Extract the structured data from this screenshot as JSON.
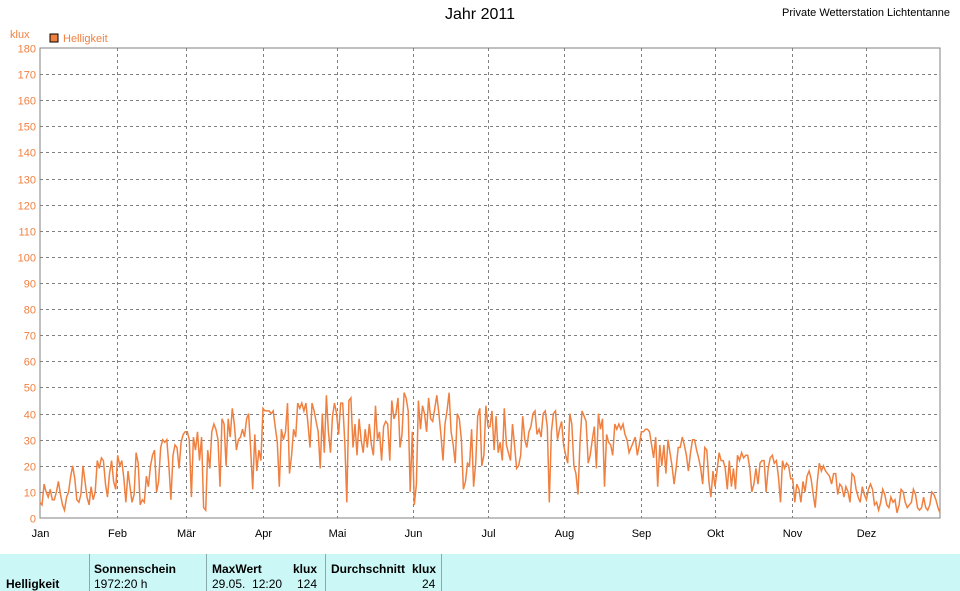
{
  "header": {
    "title": "Jahr 2011",
    "station": "Private Wetterstation Lichtentanne"
  },
  "chart_data": {
    "type": "line",
    "ylabel": "klux",
    "ylim": [
      0,
      180
    ],
    "yticks": [
      0,
      10,
      20,
      30,
      40,
      50,
      60,
      70,
      80,
      90,
      100,
      110,
      120,
      130,
      140,
      150,
      160,
      170,
      180
    ],
    "xlim": [
      1,
      365
    ],
    "month_ticks": [
      {
        "label": "Jan",
        "day": 1
      },
      {
        "label": "Feb",
        "day": 32
      },
      {
        "label": "Mär",
        "day": 60
      },
      {
        "label": "Apr",
        "day": 91
      },
      {
        "label": "Mai",
        "day": 121
      },
      {
        "label": "Jun",
        "day": 152
      },
      {
        "label": "Jul",
        "day": 182
      },
      {
        "label": "Aug",
        "day": 213
      },
      {
        "label": "Sep",
        "day": 244
      },
      {
        "label": "Okt",
        "day": 274
      },
      {
        "label": "Nov",
        "day": 305
      },
      {
        "label": "Dez",
        "day": 335
      }
    ],
    "grid": true,
    "legend_position": "top-left",
    "series": [
      {
        "name": "Helligkeit",
        "color": "#f08040",
        "values": [
          6,
          5,
          13,
          10,
          8,
          11,
          7,
          7,
          10,
          14,
          9,
          5,
          3,
          8,
          10,
          16,
          20,
          15,
          7,
          6,
          9,
          20,
          14,
          8,
          5,
          12,
          7,
          10,
          22,
          19,
          23,
          22,
          13,
          8,
          17,
          22,
          14,
          11,
          24,
          20,
          22,
          15,
          6,
          18,
          12,
          6,
          9,
          25,
          21,
          5,
          7,
          6,
          16,
          12,
          20,
          24,
          26,
          10,
          14,
          27,
          30,
          29,
          30,
          20,
          7,
          24,
          28,
          27,
          19,
          29,
          32,
          33,
          33,
          30,
          8,
          31,
          26,
          33,
          22,
          31,
          4,
          3,
          26,
          19,
          33,
          36,
          34,
          30,
          12,
          38,
          36,
          20,
          38,
          31,
          42,
          36,
          26,
          30,
          31,
          34,
          31,
          38,
          40,
          26,
          11,
          32,
          18,
          26,
          22,
          42,
          41,
          41,
          41,
          40,
          41,
          35,
          29,
          12,
          34,
          30,
          33,
          44,
          17,
          24,
          34,
          31,
          44,
          42,
          44,
          41,
          44,
          36,
          27,
          44,
          41,
          37,
          33,
          19,
          40,
          25,
          47,
          33,
          25,
          39,
          44,
          40,
          32,
          44,
          44,
          29,
          6,
          45,
          46,
          27,
          36,
          24,
          38,
          30,
          25,
          34,
          27,
          36,
          28,
          24,
          43,
          30,
          33,
          22,
          35,
          37,
          36,
          22,
          45,
          38,
          40,
          46,
          27,
          32,
          48,
          46,
          41,
          10,
          33,
          5,
          13,
          45,
          34,
          43,
          40,
          33,
          46,
          38,
          37,
          42,
          47,
          40,
          32,
          22,
          36,
          41,
          48,
          33,
          28,
          21,
          40,
          38,
          30,
          11,
          14,
          21,
          20,
          34,
          12,
          21,
          39,
          42,
          20,
          24,
          43,
          35,
          35,
          41,
          26,
          39,
          25,
          29,
          22,
          42,
          28,
          25,
          22,
          36,
          28,
          19,
          20,
          24,
          39,
          30,
          27,
          33,
          35,
          40,
          41,
          32,
          34,
          31,
          40,
          41,
          35,
          6,
          33,
          40,
          41,
          30,
          34,
          37,
          28,
          24,
          21,
          40,
          36,
          20,
          17,
          9,
          29,
          41,
          39,
          37,
          21,
          24,
          30,
          35,
          19,
          40,
          34,
          38,
          12,
          32,
          29,
          28,
          24,
          36,
          34,
          36,
          34,
          36,
          32,
          30,
          25,
          27,
          29,
          31,
          24,
          28,
          33,
          33,
          34,
          34,
          33,
          28,
          23,
          31,
          12,
          28,
          20,
          28,
          17,
          30,
          25,
          20,
          13,
          19,
          27,
          27,
          31,
          28,
          24,
          18,
          25,
          30,
          30,
          26,
          23,
          19,
          13,
          27,
          26,
          14,
          8,
          18,
          12,
          18,
          25,
          22,
          22,
          19,
          11,
          22,
          12,
          19,
          11,
          24,
          22,
          25,
          23,
          24,
          24,
          19,
          10,
          13,
          19,
          13,
          21,
          22,
          22,
          10,
          19,
          23,
          24,
          21,
          22,
          16,
          6,
          22,
          19,
          21,
          20,
          15,
          15,
          6,
          13,
          11,
          6,
          14,
          10,
          16,
          18,
          15,
          9,
          4,
          14,
          21,
          18,
          20,
          18,
          17,
          16,
          13,
          17,
          17,
          9,
          13,
          12,
          8,
          12,
          10,
          6,
          17,
          16,
          11,
          8,
          6,
          12,
          9,
          7,
          11,
          13,
          11,
          5,
          6,
          3,
          6,
          11,
          9,
          5,
          4,
          8,
          6,
          7,
          2,
          5,
          11,
          10,
          6,
          4,
          5,
          6,
          11,
          9,
          4,
          3,
          4,
          8,
          4,
          3,
          5,
          10,
          9,
          7,
          4,
          2
        ]
      }
    ]
  },
  "stats": {
    "row_label": "Helligkeit",
    "sunshine": {
      "header": "Sonnenschein",
      "value": "1972:20 h"
    },
    "max": {
      "header": "MaxWert",
      "unit": "klux",
      "date": "29.05.  12:20",
      "value": "124"
    },
    "avg": {
      "header": "Durchschnitt",
      "unit": "klux",
      "value": "24"
    }
  }
}
